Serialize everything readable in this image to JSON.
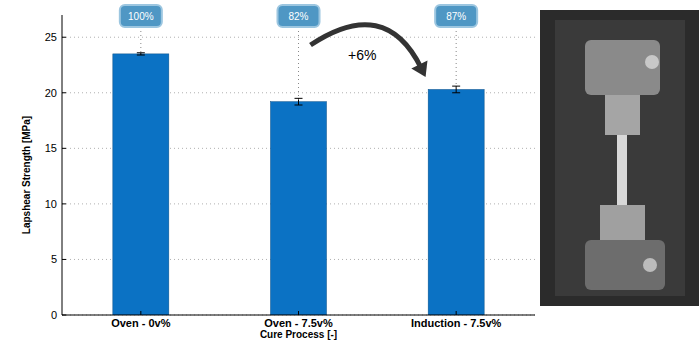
{
  "chart_data": {
    "type": "bar",
    "x_label": "Cure Process [-]",
    "y_label": "Lapshear Strength [MPa]",
    "categories": [
      "Oven - 0v%",
      "Oven - 7.5v%",
      "Induction - 7.5v%"
    ],
    "values": [
      23.5,
      19.2,
      20.3
    ],
    "errors": [
      0.1,
      0.3,
      0.3
    ],
    "relative_labels": [
      "100%",
      "82%",
      "87%"
    ],
    "annotation": "+6%",
    "color": "#0b72c4",
    "ylim": [
      0,
      27
    ],
    "yticks": [
      0,
      5,
      10,
      15,
      20,
      25
    ],
    "grid": true
  }
}
